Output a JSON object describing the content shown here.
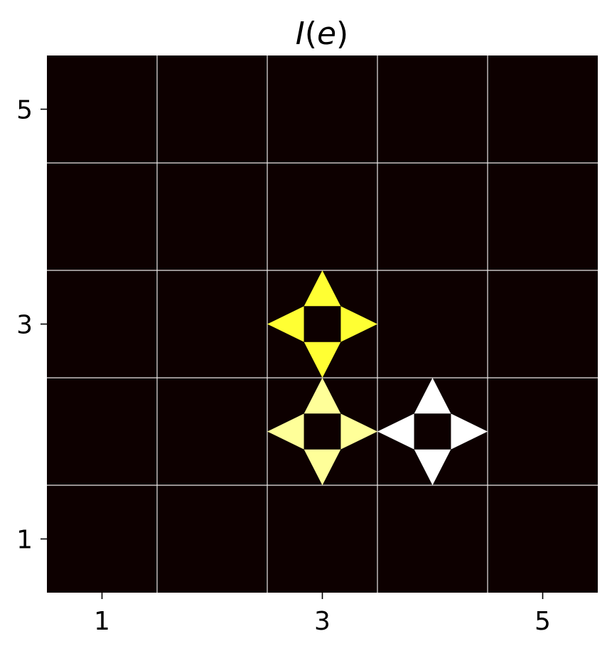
{
  "chart_data": {
    "type": "heatmap",
    "title": "I(e)",
    "title_parts": {
      "symbol": "I",
      "argument": "e"
    },
    "xlabel": "",
    "ylabel": "",
    "xlim": [
      0.5,
      5.5
    ],
    "ylim": [
      0.5,
      5.5
    ],
    "x_ticks": [
      1,
      3,
      5
    ],
    "y_ticks": [
      1,
      3,
      5
    ],
    "x_tick_labels": [
      "1",
      "3",
      "5"
    ],
    "y_tick_labels": [
      "1",
      "3",
      "5"
    ],
    "grid": true,
    "grid_color": "#e8e8e8",
    "background_color": "#0d0000",
    "colormap": "hot",
    "edge_glyph": "four triangles pointing up, right, down and left around a dark center square",
    "nodes": [
      {
        "x": 3,
        "y": 3,
        "value": 0.75,
        "color": "#ffff33"
      },
      {
        "x": 3,
        "y": 2,
        "value": 0.85,
        "color": "#ffff99"
      },
      {
        "x": 4,
        "y": 2,
        "value": 1.0,
        "color": "#ffffff"
      }
    ]
  }
}
